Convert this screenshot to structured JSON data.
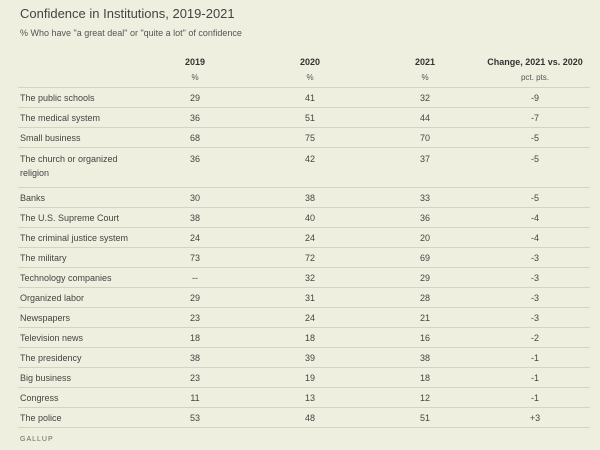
{
  "title": "Confidence in Institutions, 2019-2021",
  "subtitle": "% Who have \"a great deal\" or \"quite a lot\" of confidence",
  "footer": "GALLUP",
  "chart_data": {
    "type": "table",
    "columns": [
      "",
      "2019",
      "2020",
      "2021",
      "Change, 2021 vs. 2020"
    ],
    "units": [
      "",
      "%",
      "%",
      "%",
      "pct. pts."
    ],
    "rows": [
      [
        "The public schools",
        "29",
        "41",
        "32",
        "-9"
      ],
      [
        "The medical system",
        "36",
        "51",
        "44",
        "-7"
      ],
      [
        "Small business",
        "68",
        "75",
        "70",
        "-5"
      ],
      [
        "The church or organized religion",
        "36",
        "42",
        "37",
        "-5"
      ],
      [
        "Banks",
        "30",
        "38",
        "33",
        "-5"
      ],
      [
        "The U.S. Supreme Court",
        "38",
        "40",
        "36",
        "-4"
      ],
      [
        "The criminal justice system",
        "24",
        "24",
        "20",
        "-4"
      ],
      [
        "The military",
        "73",
        "72",
        "69",
        "-3"
      ],
      [
        "Technology companies",
        "--",
        "32",
        "29",
        "-3"
      ],
      [
        "Organized labor",
        "29",
        "31",
        "28",
        "-3"
      ],
      [
        "Newspapers",
        "23",
        "24",
        "21",
        "-3"
      ],
      [
        "Television news",
        "18",
        "18",
        "16",
        "-2"
      ],
      [
        "The presidency",
        "38",
        "39",
        "38",
        "-1"
      ],
      [
        "Big business",
        "23",
        "19",
        "18",
        "-1"
      ],
      [
        "Congress",
        "11",
        "13",
        "12",
        "-1"
      ],
      [
        "The police",
        "53",
        "48",
        "51",
        "+3"
      ]
    ]
  }
}
